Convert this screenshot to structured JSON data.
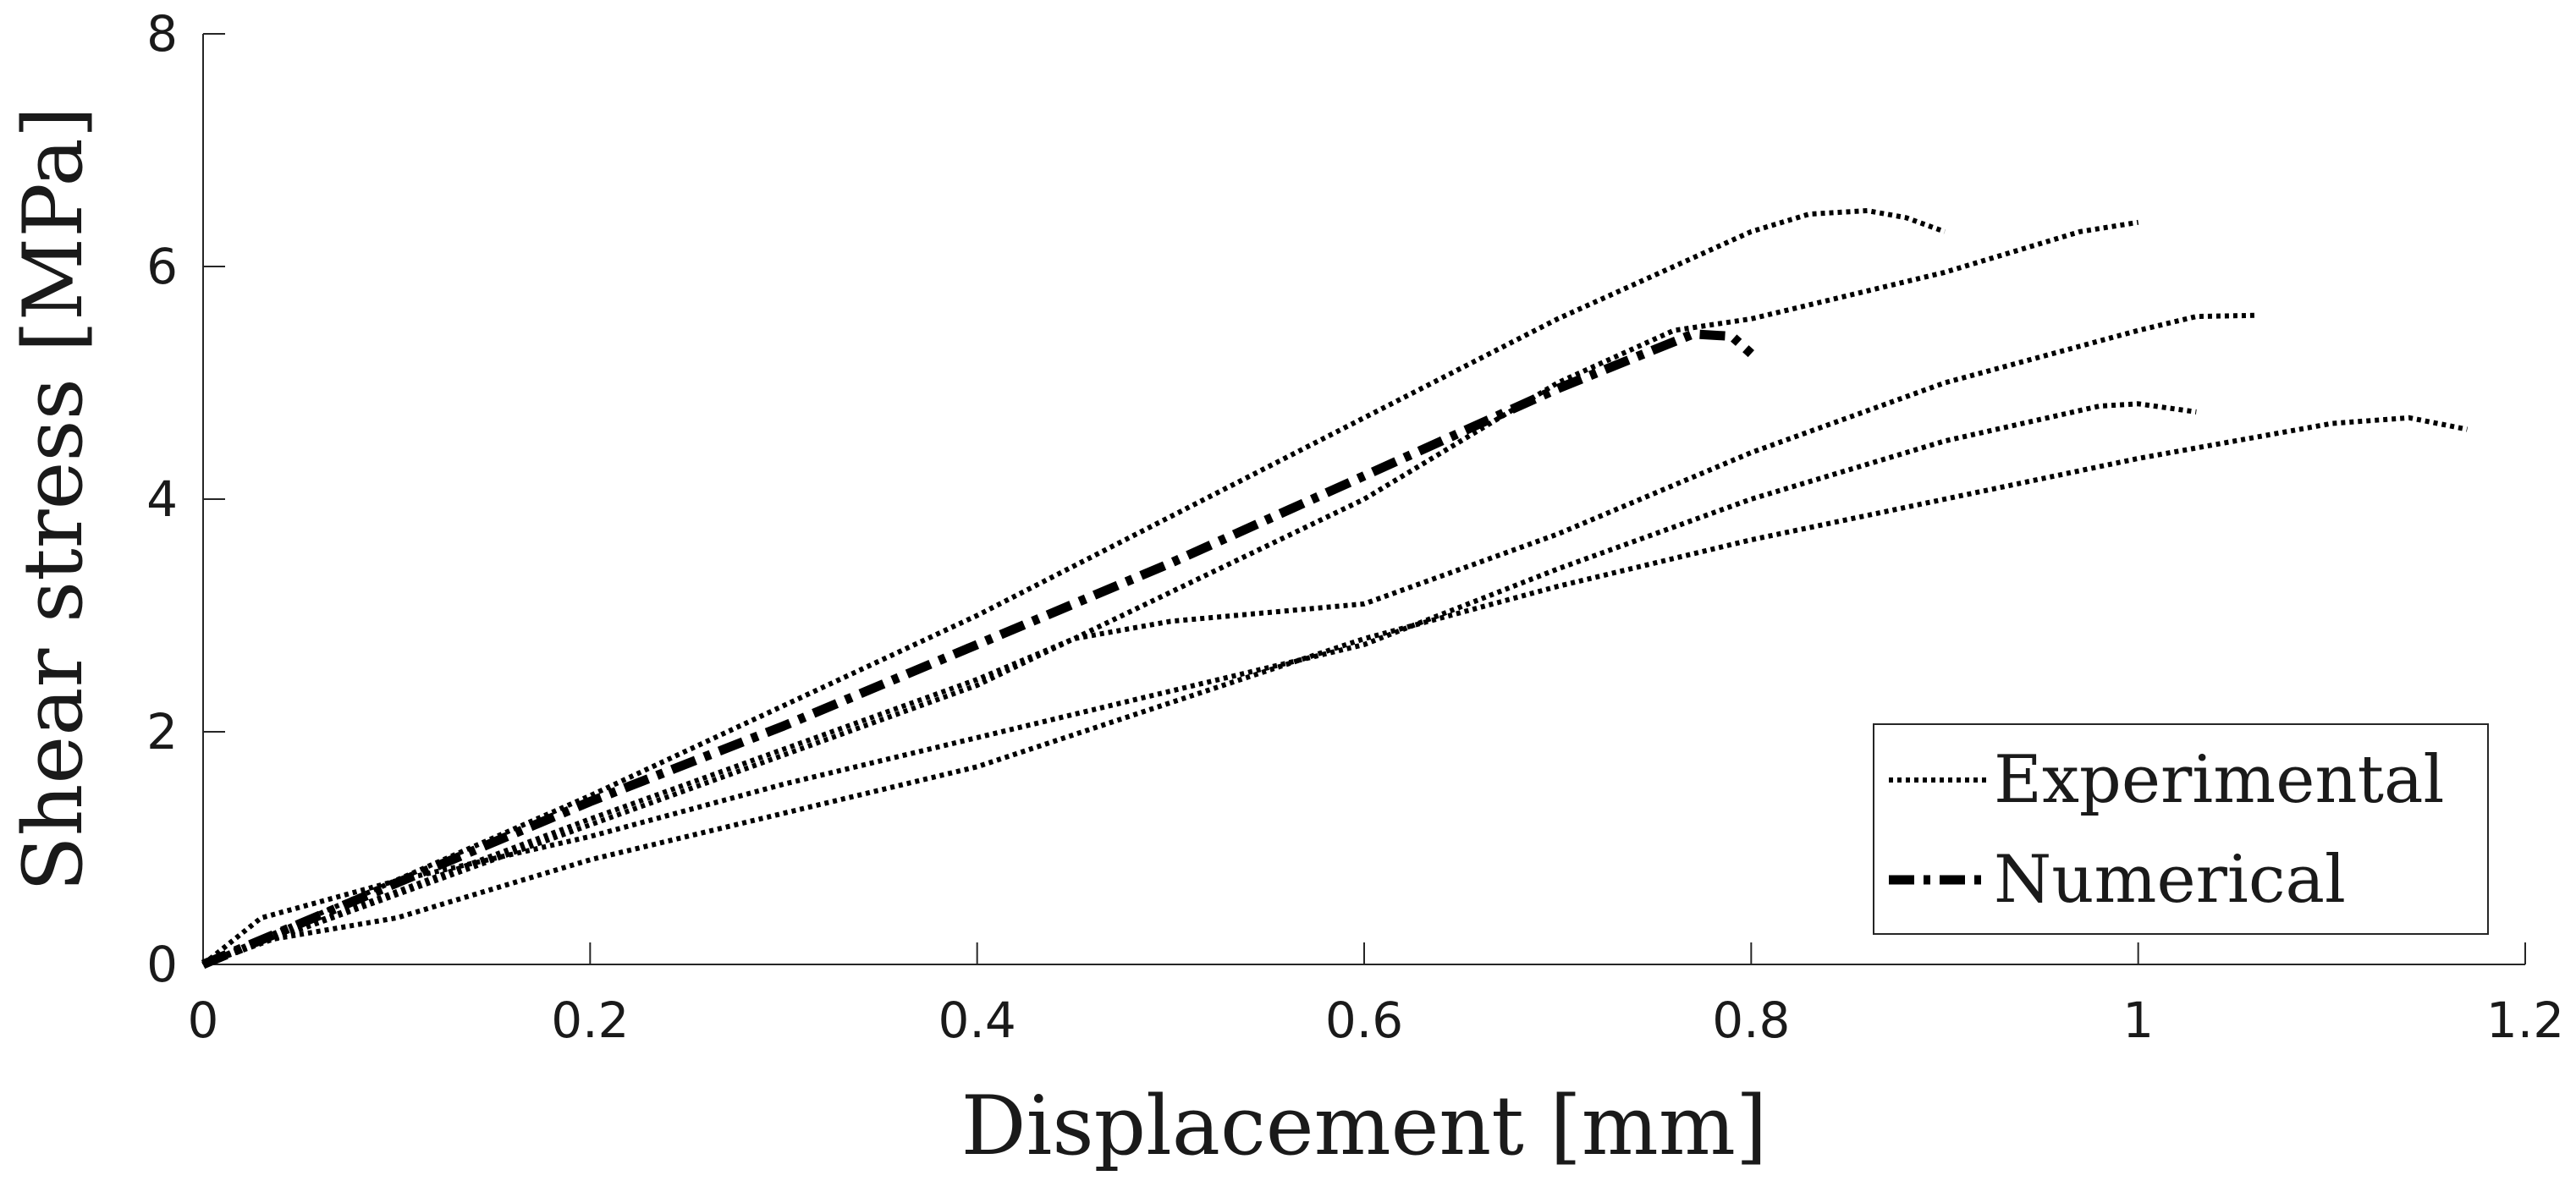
{
  "chart_data": {
    "type": "line",
    "xlabel": "Displacement [mm]",
    "ylabel": "Shear stress [MPa]",
    "xlim": [
      0,
      1.2
    ],
    "ylim": [
      0,
      8
    ],
    "x_ticks": [
      0,
      0.2,
      0.4,
      0.6,
      0.8,
      1,
      1.2
    ],
    "x_tick_labels": [
      "0",
      "0.2",
      "0.4",
      "0.6",
      "0.8",
      "1",
      "1.2"
    ],
    "y_ticks": [
      0,
      2,
      4,
      6,
      8
    ],
    "y_tick_labels": [
      "0",
      "2",
      "4",
      "6",
      "8"
    ],
    "grid": false,
    "legend_position": "bottom-right",
    "legend": [
      {
        "label": "Experimental",
        "style": "dotted"
      },
      {
        "label": "Numerical",
        "style": "dash-dot"
      }
    ],
    "series": [
      {
        "group": "Experimental",
        "style": "dotted",
        "x": [
          0,
          0.2,
          0.4,
          0.5,
          0.6,
          0.7,
          0.8,
          0.83,
          0.86,
          0.88,
          0.9
        ],
        "y": [
          0,
          1.45,
          3.0,
          3.85,
          4.7,
          5.55,
          6.3,
          6.45,
          6.48,
          6.42,
          6.3
        ]
      },
      {
        "group": "Experimental",
        "style": "dotted",
        "x": [
          0,
          0.2,
          0.4,
          0.5,
          0.6,
          0.7,
          0.76,
          0.8,
          0.9,
          0.97,
          1.0
        ],
        "y": [
          0,
          1.2,
          2.4,
          3.2,
          4.0,
          5.0,
          5.45,
          5.55,
          5.95,
          6.3,
          6.38
        ]
      },
      {
        "group": "Experimental",
        "style": "dotted",
        "x": [
          0,
          0.2,
          0.4,
          0.45,
          0.5,
          0.6,
          0.7,
          0.8,
          0.9,
          1.0,
          1.03,
          1.06
        ],
        "y": [
          0,
          1.25,
          2.45,
          2.8,
          2.95,
          3.1,
          3.7,
          4.4,
          5.0,
          5.45,
          5.57,
          5.58
        ]
      },
      {
        "group": "Experimental",
        "style": "dotted",
        "x": [
          0,
          0.03,
          0.1,
          0.2,
          0.3,
          0.4,
          0.5,
          0.6,
          0.7,
          0.8,
          0.9,
          0.98,
          1.0,
          1.03
        ],
        "y": [
          0,
          0.4,
          0.72,
          1.1,
          1.55,
          1.95,
          2.35,
          2.75,
          3.4,
          4.0,
          4.5,
          4.8,
          4.82,
          4.75
        ]
      },
      {
        "group": "Experimental",
        "style": "dotted",
        "x": [
          0,
          0.03,
          0.1,
          0.2,
          0.3,
          0.4,
          0.5,
          0.6,
          0.7,
          0.8,
          0.9,
          1.0,
          1.1,
          1.14,
          1.17
        ],
        "y": [
          0,
          0.2,
          0.4,
          0.9,
          1.3,
          1.7,
          2.25,
          2.8,
          3.25,
          3.65,
          4.0,
          4.35,
          4.65,
          4.7,
          4.6
        ]
      },
      {
        "group": "Numerical",
        "style": "dash-dot",
        "x": [
          0,
          0.1,
          0.2,
          0.3,
          0.4,
          0.5,
          0.6,
          0.7,
          0.77,
          0.79,
          0.8
        ],
        "y": [
          0,
          0.7,
          1.4,
          2.05,
          2.75,
          3.45,
          4.2,
          4.95,
          5.42,
          5.4,
          5.25
        ]
      }
    ]
  }
}
